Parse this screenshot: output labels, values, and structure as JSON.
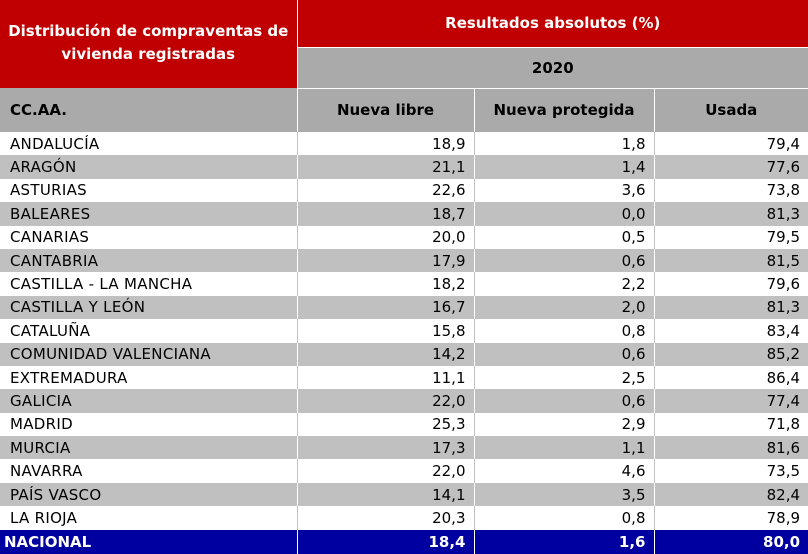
{
  "table": {
    "title": "Distribución de compraventas de vivienda registradas",
    "results_header": "Resultados absolutos (%)",
    "year": "2020",
    "columns": [
      "CC.AA.",
      "Nueva libre",
      "Nueva protegida",
      "Usada"
    ],
    "rows": [
      {
        "region": "ANDALUCÍA",
        "nueva_libre": "18,9",
        "nueva_protegida": "1,8",
        "usada": "79,4"
      },
      {
        "region": "ARAGÓN",
        "nueva_libre": "21,1",
        "nueva_protegida": "1,4",
        "usada": "77,6"
      },
      {
        "region": "ASTURIAS",
        "nueva_libre": "22,6",
        "nueva_protegida": "3,6",
        "usada": "73,8"
      },
      {
        "region": "BALEARES",
        "nueva_libre": "18,7",
        "nueva_protegida": "0,0",
        "usada": "81,3"
      },
      {
        "region": "CANARIAS",
        "nueva_libre": "20,0",
        "nueva_protegida": "0,5",
        "usada": "79,5"
      },
      {
        "region": "CANTABRIA",
        "nueva_libre": "17,9",
        "nueva_protegida": "0,6",
        "usada": "81,5"
      },
      {
        "region": "CASTILLA - LA MANCHA",
        "nueva_libre": "18,2",
        "nueva_protegida": "2,2",
        "usada": "79,6"
      },
      {
        "region": "CASTILLA Y LEÓN",
        "nueva_libre": "16,7",
        "nueva_protegida": "2,0",
        "usada": "81,3"
      },
      {
        "region": "CATALUÑA",
        "nueva_libre": "15,8",
        "nueva_protegida": "0,8",
        "usada": "83,4"
      },
      {
        "region": "COMUNIDAD VALENCIANA",
        "nueva_libre": "14,2",
        "nueva_protegida": "0,6",
        "usada": "85,2"
      },
      {
        "region": "EXTREMADURA",
        "nueva_libre": "11,1",
        "nueva_protegida": "2,5",
        "usada": "86,4"
      },
      {
        "region": "GALICIA",
        "nueva_libre": "22,0",
        "nueva_protegida": "0,6",
        "usada": "77,4"
      },
      {
        "region": "MADRID",
        "nueva_libre": "25,3",
        "nueva_protegida": "2,9",
        "usada": "71,8"
      },
      {
        "region": "MURCIA",
        "nueva_libre": "17,3",
        "nueva_protegida": "1,1",
        "usada": "81,6"
      },
      {
        "region": "NAVARRA",
        "nueva_libre": "22,0",
        "nueva_protegida": "4,6",
        "usada": "73,5"
      },
      {
        "region": "PAÍS VASCO",
        "nueva_libre": "14,1",
        "nueva_protegida": "3,5",
        "usada": "82,4"
      },
      {
        "region": "LA RIOJA",
        "nueva_libre": "20,3",
        "nueva_protegida": "0,8",
        "usada": "78,9"
      }
    ],
    "total": {
      "region": "NACIONAL",
      "nueva_libre": "18,4",
      "nueva_protegida": "1,6",
      "usada": "80,0"
    },
    "colors": {
      "header_red": "#c00000",
      "header_gray": "#aaaaaa",
      "row_alt": "#c0c0c0",
      "total_blue": "#0000a0"
    }
  }
}
